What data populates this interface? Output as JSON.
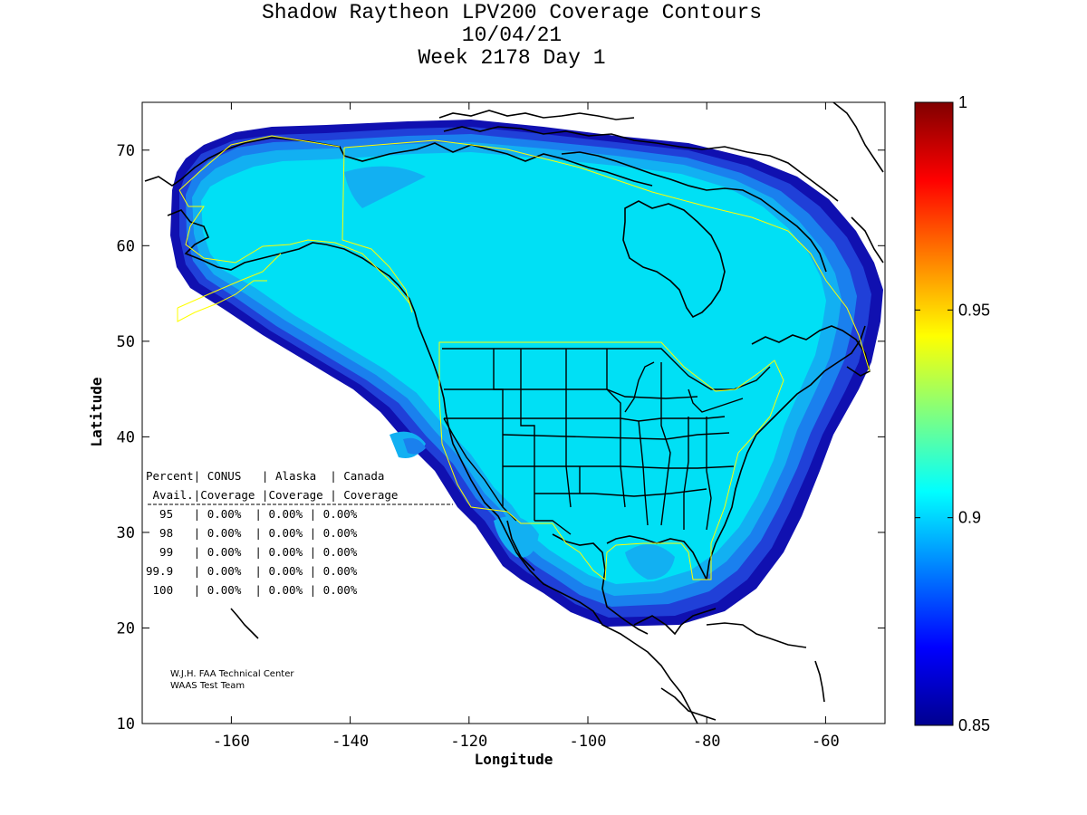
{
  "title": {
    "line1": "Shadow Raytheon LPV200 Coverage Contours",
    "line2": "10/04/21",
    "line3": "Week 2178 Day 1"
  },
  "axes": {
    "xlabel": "Longitude",
    "ylabel": "Latitude",
    "xlim": [
      -175,
      -50
    ],
    "ylim": [
      10,
      75
    ],
    "xticks": [
      "-160",
      "-140",
      "-120",
      "-100",
      "-80",
      "-60"
    ],
    "yticks": [
      "70",
      "60",
      "50",
      "40",
      "30",
      "20",
      "10"
    ]
  },
  "colorbar": {
    "range": [
      0.85,
      1
    ],
    "ticks": [
      "1",
      "0.95",
      "0.9",
      "0.85"
    ]
  },
  "coverage_table": {
    "header1": "Percent| CONUS   | Alaska  | Canada",
    "header2": " Avail.|Coverage |Coverage | Coverage",
    "rows": [
      "  95   | 0.00%  | 0.00% | 0.00%",
      "  98   | 0.00%  | 0.00% | 0.00%",
      "  99   | 0.00%  | 0.00% | 0.00%",
      "99.9   | 0.00%  | 0.00% | 0.00%",
      " 100   | 0.00%  | 0.00% | 0.00%"
    ]
  },
  "credit": {
    "line1": "W.J.H. FAA Technical Center",
    "line2": "WAAS Test Team"
  },
  "colors": {
    "coverage_core": "#00e0f5",
    "coverage_mid": "#12b0f2",
    "coverage_outer": "#1a80ee",
    "coverage_edge": "#2040d8",
    "coverage_rim": "#1010b0",
    "region_outline": "#ffff00"
  }
}
